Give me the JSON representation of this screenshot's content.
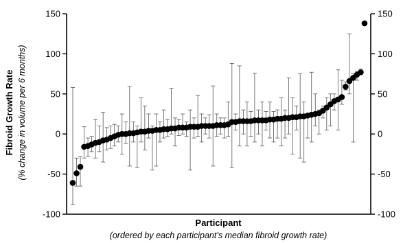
{
  "chart_data": {
    "type": "scatter",
    "ylabel": "Fibroid Growth Rate",
    "ylabel_sub": "(% change in volume per 6 months)",
    "xlabel": "Participant",
    "xlabel_sub": "(ordered by each participant’s median fibroid growth rate)",
    "ylim": [
      -100,
      150
    ],
    "yticks": [
      -100,
      -50,
      0,
      50,
      100,
      150
    ],
    "ytick_labels": [
      "-100",
      "-50",
      "0",
      "50",
      "100",
      "150"
    ],
    "right_axis": true,
    "grid": false,
    "legend": "none",
    "series": [
      {
        "marker": "filled-circle",
        "color": "#000000",
        "points": [
          {
            "x": 1,
            "y": -61,
            "lo": -88,
            "hi": 58
          },
          {
            "x": 2,
            "y": -49,
            "lo": -65,
            "hi": -30
          },
          {
            "x": 3,
            "y": -41,
            "lo": -65,
            "hi": -28
          },
          {
            "x": 4,
            "y": -16,
            "lo": -30,
            "hi": 9
          },
          {
            "x": 5,
            "y": -15,
            "lo": -28,
            "hi": -5
          },
          {
            "x": 6,
            "y": -13,
            "lo": -22,
            "hi": -3
          },
          {
            "x": 7,
            "y": -11,
            "lo": -30,
            "hi": 18
          },
          {
            "x": 8,
            "y": -10,
            "lo": -22,
            "hi": 10
          },
          {
            "x": 9,
            "y": -8,
            "lo": -35,
            "hi": 27
          },
          {
            "x": 10,
            "y": -7,
            "lo": -20,
            "hi": 8
          },
          {
            "x": 11,
            "y": -5,
            "lo": -18,
            "hi": 10
          },
          {
            "x": 12,
            "y": -3,
            "lo": -15,
            "hi": 12
          },
          {
            "x": 13,
            "y": -1,
            "lo": -10,
            "hi": 10
          },
          {
            "x": 14,
            "y": 0,
            "lo": -25,
            "hi": 25
          },
          {
            "x": 15,
            "y": 0,
            "lo": -12,
            "hi": 15
          },
          {
            "x": 16,
            "y": 1,
            "lo": -40,
            "hi": 59
          },
          {
            "x": 17,
            "y": 1,
            "lo": -10,
            "hi": 15
          },
          {
            "x": 18,
            "y": 2,
            "lo": -42,
            "hi": 10
          },
          {
            "x": 19,
            "y": 3,
            "lo": -10,
            "hi": 45
          },
          {
            "x": 20,
            "y": 3,
            "lo": -20,
            "hi": 35
          },
          {
            "x": 21,
            "y": 4,
            "lo": -5,
            "hi": 25
          },
          {
            "x": 22,
            "y": 4,
            "lo": -45,
            "hi": 10
          },
          {
            "x": 23,
            "y": 5,
            "lo": -40,
            "hi": 25
          },
          {
            "x": 24,
            "y": 5,
            "lo": -10,
            "hi": 15
          },
          {
            "x": 25,
            "y": 6,
            "lo": -5,
            "hi": 30
          },
          {
            "x": 26,
            "y": 6,
            "lo": -3,
            "hi": 18
          },
          {
            "x": 27,
            "y": 7,
            "lo": 0,
            "hi": 57
          },
          {
            "x": 28,
            "y": 7,
            "lo": -15,
            "hi": 20
          },
          {
            "x": 29,
            "y": 8,
            "lo": -2,
            "hi": 18
          },
          {
            "x": 30,
            "y": 8,
            "lo": 0,
            "hi": 25
          },
          {
            "x": 31,
            "y": 8,
            "lo": -3,
            "hi": 15
          },
          {
            "x": 32,
            "y": 9,
            "lo": -45,
            "hi": 30
          },
          {
            "x": 33,
            "y": 9,
            "lo": -5,
            "hi": 20
          },
          {
            "x": 34,
            "y": 9,
            "lo": -3,
            "hi": 48
          },
          {
            "x": 35,
            "y": 10,
            "lo": -10,
            "hi": 25
          },
          {
            "x": 36,
            "y": 10,
            "lo": 0,
            "hi": 20
          },
          {
            "x": 37,
            "y": 10,
            "lo": -5,
            "hi": 24
          },
          {
            "x": 38,
            "y": 10,
            "lo": -40,
            "hi": 60
          },
          {
            "x": 39,
            "y": 11,
            "lo": -3,
            "hi": 25
          },
          {
            "x": 40,
            "y": 11,
            "lo": 0,
            "hi": 20
          },
          {
            "x": 41,
            "y": 11,
            "lo": -5,
            "hi": 20
          },
          {
            "x": 42,
            "y": 12,
            "lo": -3,
            "hi": 40
          },
          {
            "x": 43,
            "y": 15,
            "lo": -42,
            "hi": 88
          },
          {
            "x": 44,
            "y": 15,
            "lo": 5,
            "hi": 25
          },
          {
            "x": 45,
            "y": 16,
            "lo": -15,
            "hi": 85
          },
          {
            "x": 46,
            "y": 16,
            "lo": 0,
            "hi": 30
          },
          {
            "x": 47,
            "y": 16,
            "lo": -15,
            "hi": 40
          },
          {
            "x": 48,
            "y": 16,
            "lo": -3,
            "hi": 28
          },
          {
            "x": 49,
            "y": 17,
            "lo": -10,
            "hi": 76
          },
          {
            "x": 50,
            "y": 17,
            "lo": 0,
            "hi": 30
          },
          {
            "x": 51,
            "y": 17,
            "lo": -15,
            "hi": 40
          },
          {
            "x": 52,
            "y": 17,
            "lo": 5,
            "hi": 28
          },
          {
            "x": 53,
            "y": 18,
            "lo": -5,
            "hi": 40
          },
          {
            "x": 54,
            "y": 18,
            "lo": -10,
            "hi": 28
          },
          {
            "x": 55,
            "y": 19,
            "lo": -5,
            "hi": 30
          },
          {
            "x": 56,
            "y": 19,
            "lo": -15,
            "hi": 45
          },
          {
            "x": 57,
            "y": 20,
            "lo": -5,
            "hi": 30
          },
          {
            "x": 58,
            "y": 20,
            "lo": 0,
            "hi": 70
          },
          {
            "x": 59,
            "y": 21,
            "lo": -25,
            "hi": 45
          },
          {
            "x": 60,
            "y": 21,
            "lo": 5,
            "hi": 35
          },
          {
            "x": 61,
            "y": 22,
            "lo": -30,
            "hi": 75
          },
          {
            "x": 62,
            "y": 22,
            "lo": -35,
            "hi": 40
          },
          {
            "x": 63,
            "y": 23,
            "lo": -5,
            "hi": 25
          },
          {
            "x": 64,
            "y": 24,
            "lo": -10,
            "hi": 77
          },
          {
            "x": 65,
            "y": 25,
            "lo": 10,
            "hi": 50
          },
          {
            "x": 66,
            "y": 26,
            "lo": 0,
            "hi": 30
          },
          {
            "x": 67,
            "y": 29,
            "lo": 20,
            "hi": 35
          },
          {
            "x": 68,
            "y": 33,
            "lo": 5,
            "hi": 45
          },
          {
            "x": 69,
            "y": 37,
            "lo": 10,
            "hi": 50
          },
          {
            "x": 70,
            "y": 41,
            "lo": 30,
            "hi": 50
          },
          {
            "x": 71,
            "y": 43,
            "lo": 5,
            "hi": 80
          },
          {
            "x": 72,
            "y": 46,
            "lo": 37,
            "hi": 67
          },
          {
            "x": 73,
            "y": 59,
            "lo": 55,
            "hi": 65
          },
          {
            "x": 74,
            "y": 66,
            "lo": 50,
            "hi": 125
          },
          {
            "x": 75,
            "y": 70,
            "lo": -10,
            "hi": 75
          },
          {
            "x": 76,
            "y": 74,
            "lo": 67,
            "hi": 78
          },
          {
            "x": 77,
            "y": 77,
            "lo": 75,
            "hi": 81
          },
          {
            "x": 78,
            "y": 138,
            "lo": 138,
            "hi": 138
          }
        ]
      }
    ]
  }
}
